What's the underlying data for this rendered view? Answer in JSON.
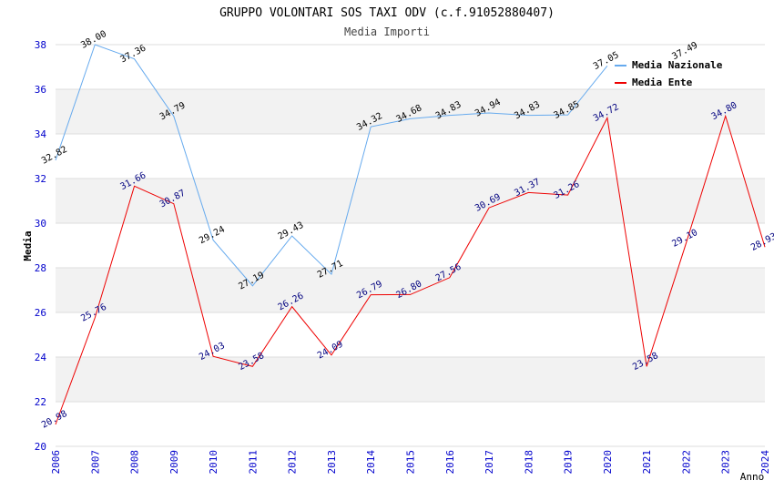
{
  "chart_data": {
    "type": "line",
    "title": "GRUPPO VOLONTARI SOS TAXI ODV (c.f.91052880407)",
    "subtitle": "Media Importi",
    "xlabel": "Anno",
    "ylabel": "Media",
    "x": [
      "2006",
      "2007",
      "2008",
      "2009",
      "2010",
      "2011",
      "2012",
      "2013",
      "2014",
      "2015",
      "2016",
      "2017",
      "2018",
      "2019",
      "2020",
      "2021",
      "2022",
      "2023",
      "2024"
    ],
    "ylim": [
      20,
      38
    ],
    "yticks": [
      "20",
      "22",
      "24",
      "26",
      "28",
      "30",
      "32",
      "34",
      "36",
      "38"
    ],
    "grid": "horizontal alternating bands",
    "legend": "top-right",
    "series": [
      {
        "name": "Media Nazionale",
        "color": "#66aaee",
        "values": [
          32.82,
          38.0,
          37.36,
          34.79,
          29.24,
          27.19,
          29.43,
          27.71,
          34.32,
          34.68,
          34.83,
          34.94,
          34.83,
          34.85,
          37.05,
          null,
          37.49,
          null,
          null
        ],
        "labels": [
          "32.82",
          "38.00",
          "37.36",
          "34.79",
          "29.24",
          "27.19",
          "29.43",
          "27.71",
          "34.32",
          "34.68",
          "34.83",
          "34.94",
          "34.83",
          "34.85",
          "37.05",
          null,
          "37.49",
          null,
          null
        ]
      },
      {
        "name": "Media Ente",
        "color": "#ee0000",
        "values": [
          20.98,
          25.76,
          31.66,
          30.87,
          24.03,
          23.58,
          26.26,
          24.09,
          26.79,
          26.8,
          27.56,
          30.69,
          31.37,
          31.26,
          34.72,
          23.58,
          29.1,
          34.8,
          28.93
        ],
        "labels": [
          "20.98",
          "25.76",
          "31.66",
          "30.87",
          "24.03",
          "23.58",
          "26.26",
          "24.09",
          "26.79",
          "26.80",
          "27.56",
          "30.69",
          "31.37",
          "31.26",
          "34.72",
          "23.58",
          "29.10",
          "34.80",
          "28.93"
        ]
      }
    ]
  }
}
